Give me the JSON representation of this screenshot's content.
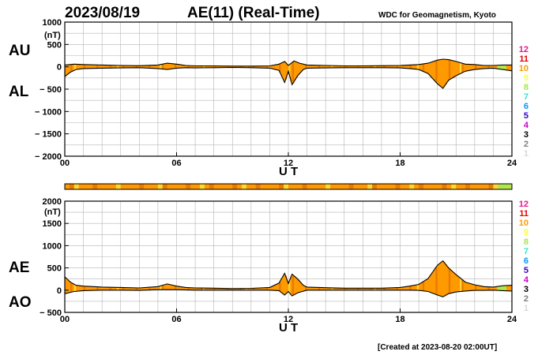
{
  "header": {
    "date": "2023/08/19",
    "title": "AE(11) (Real-Time)",
    "source": "WDC for Geomagnetism, Kyoto"
  },
  "footer": {
    "created": "[Created at 2023-08-20 02:00UT]"
  },
  "legend": {
    "numbers": [
      "12",
      "11",
      "10",
      "9",
      "8",
      "7",
      "6",
      "5",
      "4",
      "3",
      "2",
      "1"
    ],
    "colors": [
      "#e6198c",
      "#e60000",
      "#ff9900",
      "#ffff33",
      "#a6e64d",
      "#33e6cc",
      "#0099ff",
      "#3300cc",
      "#cc00cc",
      "#000000",
      "#808080",
      "#d9d9d9"
    ]
  },
  "colors": {
    "fill_main": "#ff9900",
    "fill_alt": "#e87a00",
    "fill_yellow": "#ffd633",
    "fill_green": "#b3e64d",
    "grid": "#b4b4b4",
    "curve": "#000000"
  },
  "chart_data": [
    {
      "type": "area",
      "panel": "AU/AL",
      "labels": {
        "upper": "AU",
        "lower": "AL"
      },
      "xlabel": "U T",
      "unit": "(nT)",
      "xlim": [
        0,
        24
      ],
      "ylim": [
        -2000,
        1000
      ],
      "xticks": [
        0,
        6,
        12,
        18,
        24
      ],
      "xtick_labels": [
        "00",
        "06",
        "12",
        "18",
        "24"
      ],
      "yticks": [
        1000,
        500,
        0,
        -500,
        -1000,
        -1500,
        -2000
      ],
      "ytick_labels": [
        "1000",
        "500",
        "0",
        "− 500",
        "− 1000",
        "− 1500",
        "− 2000"
      ],
      "series": [
        {
          "name": "AU",
          "x": [
            0,
            0.5,
            1,
            2,
            3,
            4,
            5,
            5.5,
            6,
            6.5,
            7,
            8,
            9,
            10,
            11,
            11.5,
            11.8,
            12,
            12.3,
            12.6,
            13,
            14,
            15,
            16,
            17,
            18,
            18.5,
            19,
            19.5,
            20,
            20.3,
            20.6,
            21,
            21.5,
            22,
            22.5,
            23,
            23.5,
            24
          ],
          "values": [
            40,
            60,
            50,
            40,
            30,
            25,
            40,
            80,
            60,
            30,
            20,
            20,
            15,
            15,
            20,
            60,
            120,
            30,
            130,
            80,
            40,
            30,
            20,
            20,
            25,
            30,
            40,
            50,
            80,
            150,
            170,
            160,
            120,
            60,
            50,
            30,
            30,
            40,
            40
          ]
        },
        {
          "name": "AL",
          "x": [
            0,
            0.3,
            0.6,
            1,
            2,
            3,
            4,
            5,
            5.5,
            6,
            6.5,
            7,
            8,
            9,
            10,
            11,
            11.5,
            11.8,
            12,
            12.2,
            12.5,
            12.8,
            13,
            14,
            15,
            16,
            17,
            18,
            18.5,
            19,
            19.5,
            20,
            20.3,
            20.6,
            21,
            21.5,
            22,
            22.5,
            23,
            23.5,
            24
          ],
          "values": [
            -220,
            -120,
            -60,
            -40,
            -30,
            -25,
            -20,
            -40,
            -60,
            -30,
            -20,
            -25,
            -20,
            -15,
            -20,
            -30,
            -80,
            -350,
            -100,
            -400,
            -200,
            -60,
            -30,
            -25,
            -20,
            -20,
            -20,
            -25,
            -40,
            -60,
            -150,
            -380,
            -480,
            -300,
            -200,
            -100,
            -60,
            -40,
            -30,
            -60,
            -90
          ]
        }
      ]
    },
    {
      "type": "area",
      "panel": "AE/AO",
      "labels": {
        "upper": "AE",
        "lower": "AO"
      },
      "xlabel": "U T",
      "unit": "(nT)",
      "xlim": [
        0,
        24
      ],
      "ylim": [
        -500,
        2000
      ],
      "xticks": [
        0,
        6,
        12,
        18,
        24
      ],
      "xtick_labels": [
        "00",
        "06",
        "12",
        "18",
        "24"
      ],
      "yticks": [
        2000,
        1500,
        1000,
        500,
        0,
        -500
      ],
      "ytick_labels": [
        "2000",
        "1500",
        "1000",
        "500",
        "0",
        "− 500"
      ],
      "series": [
        {
          "name": "AE",
          "x": [
            0,
            0.3,
            0.6,
            1,
            2,
            3,
            4,
            5,
            5.5,
            6,
            6.5,
            7,
            8,
            9,
            10,
            11,
            11.5,
            11.8,
            12,
            12.2,
            12.5,
            12.8,
            13,
            14,
            15,
            16,
            17,
            18,
            18.5,
            19,
            19.5,
            20,
            20.3,
            20.6,
            21,
            21.5,
            22,
            22.5,
            23,
            23.5,
            24
          ],
          "values": [
            300,
            180,
            110,
            90,
            70,
            60,
            50,
            80,
            140,
            90,
            60,
            50,
            45,
            35,
            40,
            60,
            160,
            380,
            150,
            360,
            250,
            110,
            70,
            55,
            45,
            45,
            45,
            60,
            90,
            130,
            260,
            560,
            660,
            500,
            350,
            180,
            120,
            80,
            70,
            100,
            110
          ]
        },
        {
          "name": "AO",
          "x": [
            0,
            0.5,
            1,
            2,
            3,
            4,
            5,
            6,
            7,
            8,
            9,
            10,
            11,
            11.5,
            11.8,
            12,
            12.2,
            12.5,
            13,
            14,
            15,
            16,
            17,
            18,
            18.5,
            19,
            19.5,
            20,
            20.3,
            20.6,
            21,
            21.5,
            22,
            22.5,
            23,
            23.5,
            24
          ],
          "values": [
            -80,
            -30,
            -10,
            0,
            0,
            -5,
            10,
            10,
            0,
            0,
            0,
            0,
            0,
            -10,
            -110,
            -30,
            -130,
            -60,
            0,
            0,
            0,
            0,
            0,
            0,
            0,
            -5,
            -30,
            -110,
            -150,
            -80,
            -40,
            -20,
            -5,
            -5,
            0,
            -10,
            -20
          ]
        }
      ]
    }
  ]
}
